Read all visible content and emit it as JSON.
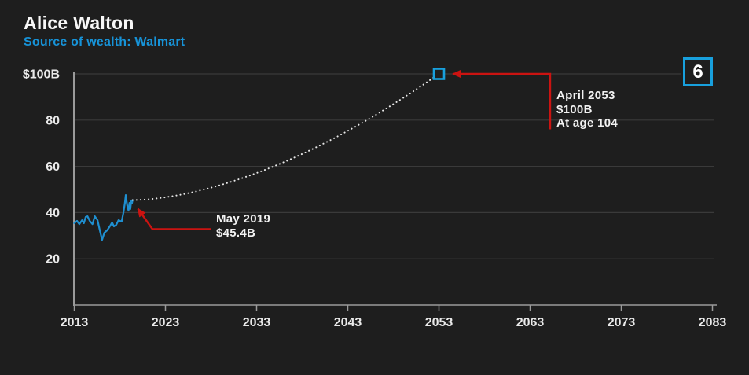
{
  "header": {
    "title": "Alice Walton",
    "subtitle": "Source of wealth: Walmart"
  },
  "badge": {
    "rank": "6"
  },
  "colors": {
    "background": "#1e1e1e",
    "grid": "#3a3a3a",
    "axis": "#9a9a9a",
    "tick_label": "#e9e9e9",
    "title_text": "#f7f7f7",
    "subtitle_blue": "#1793d8",
    "line_blue": "#1f8fd0",
    "accent_blue": "#18a0dd",
    "projection_dotted": "#e9e9e9",
    "annotation_red": "#cb1311",
    "annotation_text": "#f2f2f2"
  },
  "chart_data": {
    "type": "line",
    "title": "Alice Walton",
    "subtitle": "Source of wealth: Walmart",
    "xlabel": "",
    "ylabel": "",
    "xlim": [
      2013,
      2085
    ],
    "ylim": [
      0,
      100
    ],
    "grid": "horizontal",
    "legend": "none",
    "x_ticks": [
      2013,
      2023,
      2033,
      2043,
      2053,
      2063,
      2073,
      2083
    ],
    "y_ticks": [
      {
        "label": "$100B",
        "value": 100
      },
      {
        "label": "80",
        "value": 80
      },
      {
        "label": "60",
        "value": 60
      },
      {
        "label": "40",
        "value": 40
      },
      {
        "label": "20",
        "value": 20
      }
    ],
    "series": [
      {
        "name": "historical-net-worth",
        "style": "solid",
        "color": "#1f8fd0",
        "points": [
          [
            2013.0,
            35.4
          ],
          [
            2013.3,
            36.4
          ],
          [
            2013.55,
            35.0
          ],
          [
            2013.85,
            36.7
          ],
          [
            2014.05,
            35.4
          ],
          [
            2014.25,
            38.1
          ],
          [
            2014.45,
            38.4
          ],
          [
            2014.7,
            36.4
          ],
          [
            2015.0,
            35.0
          ],
          [
            2015.25,
            38.4
          ],
          [
            2015.55,
            36.7
          ],
          [
            2015.8,
            32.3
          ],
          [
            2016.05,
            28.2
          ],
          [
            2016.3,
            31.3
          ],
          [
            2016.6,
            32.3
          ],
          [
            2016.9,
            34.0
          ],
          [
            2017.15,
            35.7
          ],
          [
            2017.35,
            34.0
          ],
          [
            2017.6,
            34.7
          ],
          [
            2017.85,
            36.7
          ],
          [
            2018.2,
            36.1
          ],
          [
            2018.4,
            40.1
          ],
          [
            2018.55,
            44.2
          ],
          [
            2018.65,
            47.6
          ],
          [
            2018.8,
            43.2
          ],
          [
            2018.95,
            40.8
          ],
          [
            2019.05,
            44.2
          ],
          [
            2019.15,
            41.5
          ],
          [
            2019.25,
            44.9
          ],
          [
            2019.32,
            43.9
          ],
          [
            2019.4,
            45.4
          ]
        ]
      },
      {
        "name": "projected-net-worth",
        "style": "dotted",
        "color": "#e9e9e9",
        "start": [
          2019.4,
          45.4
        ],
        "end": [
          2053.0,
          100
        ],
        "curve": "power",
        "exponent": 1.7
      }
    ],
    "endpoint_marker": {
      "shape": "square",
      "x": 2053.0,
      "y": 100,
      "color": "#18a0dd"
    },
    "annotations": [
      {
        "id": "may-2019",
        "lines": [
          "May 2019",
          "$45.4B"
        ],
        "target_x": 2019.4,
        "target_y": 45.4
      },
      {
        "id": "april-2053",
        "lines": [
          "April 2053",
          "$100B",
          "At age 104"
        ],
        "target_x": 2053.0,
        "target_y": 100
      }
    ]
  }
}
